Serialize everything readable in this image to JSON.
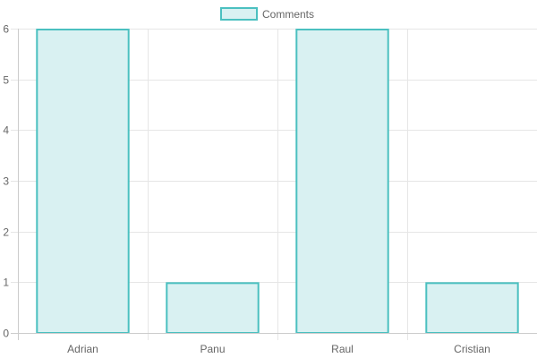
{
  "colors": {
    "bar_fill": "#d9f1f2",
    "bar_stroke": "#4bc0c0",
    "grid": "#e6e6e6",
    "axis": "#cccccc",
    "text": "#666666"
  },
  "chart_data": {
    "type": "bar",
    "categories": [
      "Adrian",
      "Panu",
      "Raul",
      "Cristian"
    ],
    "series": [
      {
        "name": "Comments",
        "values": [
          6,
          1,
          6,
          1
        ]
      }
    ],
    "ylim": [
      0,
      6
    ],
    "yticks": [
      0,
      1,
      2,
      3,
      4,
      5,
      6
    ],
    "grid": true,
    "legend": "top-center"
  }
}
